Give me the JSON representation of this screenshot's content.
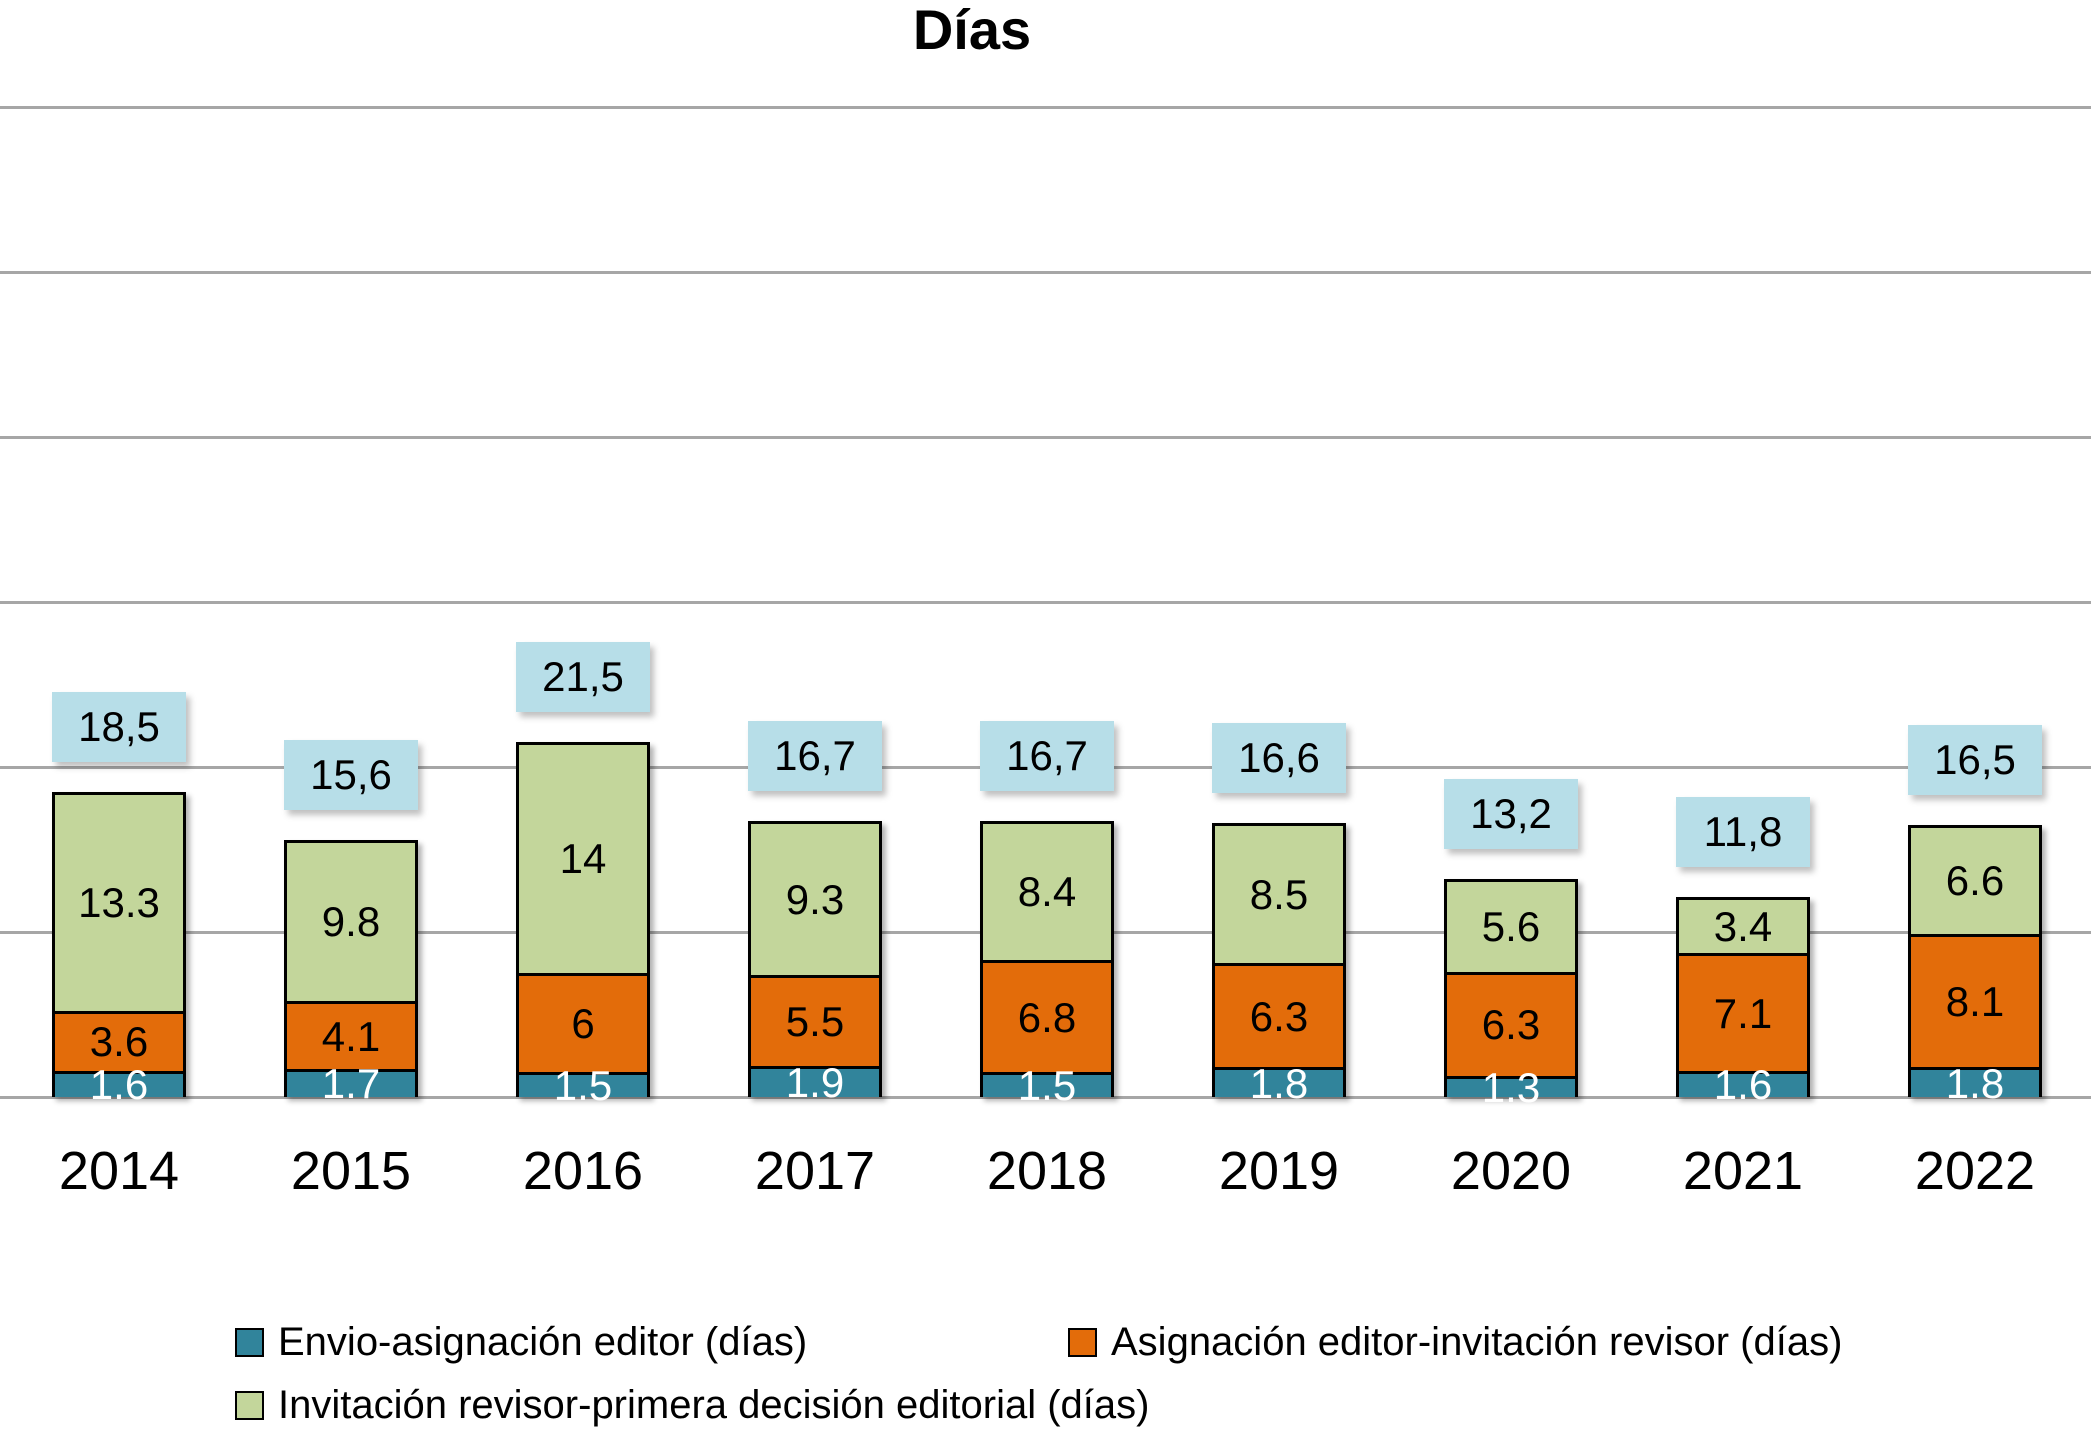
{
  "title": "Días",
  "chart_data": {
    "type": "bar",
    "stacked": true,
    "title": "Días",
    "xlabel": "",
    "ylabel": "",
    "ylim": [
      0,
      60
    ],
    "gridline_step": 10,
    "grid": true,
    "legend_position": "bottom",
    "categories": [
      "2014",
      "2015",
      "2016",
      "2017",
      "2018",
      "2019",
      "2020",
      "2021",
      "2022"
    ],
    "series": [
      {
        "name": "Envio-asignación editor (días)",
        "color": "#31849B",
        "label_color": "#ffffff",
        "values": [
          1.6,
          1.7,
          1.5,
          1.9,
          1.5,
          1.8,
          1.3,
          1.6,
          1.8
        ],
        "labels": [
          "1.6",
          "1.7",
          "1.5",
          "1.9",
          "1.5",
          "1.8",
          "1.3",
          "1.6",
          "1.8"
        ]
      },
      {
        "name": "Asignación editor-invitación revisor (días)",
        "color": "#E36C0A",
        "label_color": "#000000",
        "values": [
          3.6,
          4.1,
          6,
          5.5,
          6.8,
          6.3,
          6.3,
          7.1,
          8.1
        ],
        "labels": [
          "3.6",
          "4.1",
          "6",
          "5.5",
          "6.8",
          "6.3",
          "6.3",
          "7.1",
          "8.1"
        ]
      },
      {
        "name": "Invitación revisor-primera decisión editorial (días)",
        "color": "#C3D69B",
        "label_color": "#000000",
        "values": [
          13.3,
          9.8,
          14,
          9.3,
          8.4,
          8.5,
          5.6,
          3.4,
          6.6
        ],
        "labels": [
          "13.3",
          "9.8",
          "14",
          "9.3",
          "8.4",
          "8.5",
          "5.6",
          "3.4",
          "6.6"
        ]
      }
    ],
    "totals": [
      "18,5",
      "15,6",
      "21,5",
      "16,7",
      "16,7",
      "16,6",
      "13,2",
      "11,8",
      "16,5"
    ],
    "total_values": [
      18.5,
      15.6,
      21.5,
      16.7,
      16.7,
      16.6,
      13.2,
      11.8,
      16.5
    ],
    "total_box_color": "#B7DEE8",
    "gridline_color": "#A6A6A6"
  }
}
